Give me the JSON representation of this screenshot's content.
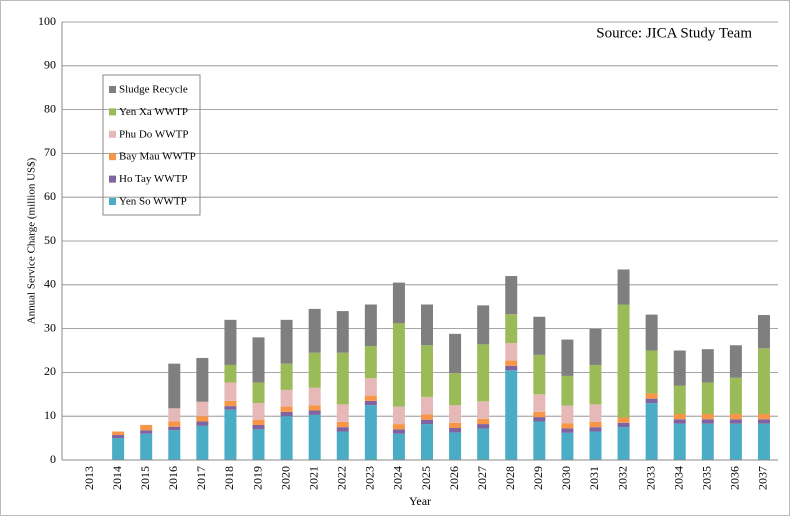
{
  "chart_data": {
    "type": "stacked-bar",
    "source": "Source: JICA Study Team",
    "x_label": "Year",
    "y_label": "Annual Service Charge (million US$)",
    "categories": [
      "2013",
      "2014",
      "2015",
      "2016",
      "2017",
      "2018",
      "2019",
      "2020",
      "2021",
      "2022",
      "2023",
      "2024",
      "2025",
      "2026",
      "2027",
      "2028",
      "2029",
      "2030",
      "2031",
      "2032",
      "2033",
      "2034",
      "2035",
      "2036",
      "2037"
    ],
    "series": [
      {
        "name": "Yen So WWTP",
        "color": "#4bacc6",
        "values": [
          0,
          5,
          6,
          6.8,
          7.8,
          11.5,
          7,
          10,
          10.3,
          6.5,
          12.5,
          6,
          8.2,
          6.3,
          7.2,
          20.5,
          8.8,
          6.2,
          6.5,
          7.5,
          13,
          8.3,
          8.3,
          8.3,
          8.3
        ]
      },
      {
        "name": "Ho Tay WWTP",
        "color": "#8064a2",
        "values": [
          0,
          0.7,
          0.8,
          0.8,
          1,
          0.8,
          1,
          1,
          1,
          1,
          1,
          1,
          1,
          1,
          1,
          1,
          1,
          1,
          1,
          1,
          1,
          1,
          1,
          1,
          1
        ]
      },
      {
        "name": "Bay Mau WWTP",
        "color": "#f79646",
        "values": [
          0,
          0.8,
          1.2,
          1.2,
          1.2,
          1.2,
          1.2,
          1.2,
          1.2,
          1.2,
          1.2,
          1.2,
          1.2,
          1.2,
          1.2,
          1.2,
          1.2,
          1.2,
          1.2,
          1.2,
          1.2,
          1.2,
          1.2,
          1.2,
          1.2
        ]
      },
      {
        "name": "Phu Do WWTP",
        "color": "#e6b9b8",
        "values": [
          0,
          0,
          0,
          3,
          3.3,
          4.2,
          3.8,
          3.8,
          4,
          4,
          4,
          4,
          4,
          4,
          4,
          4,
          4,
          4,
          4,
          0,
          0,
          0,
          0,
          0,
          0
        ]
      },
      {
        "name": "Yen Xa WWTP",
        "color": "#9bbb59",
        "values": [
          0,
          0,
          0,
          0,
          0,
          4,
          4.7,
          6,
          8,
          11.8,
          7.3,
          19,
          11.8,
          7.3,
          13,
          6.6,
          9,
          6.8,
          9,
          25.8,
          9.8,
          6.5,
          7.2,
          8.3,
          15
        ]
      },
      {
        "name": "Sludge Recycle",
        "color": "#7f7f7f",
        "values": [
          0,
          0,
          0,
          10.2,
          10,
          10.3,
          10.3,
          10,
          10,
          9.5,
          9.5,
          9.3,
          9.3,
          9,
          8.9,
          8.7,
          8.7,
          8.3,
          8.3,
          8,
          8.2,
          8,
          7.6,
          7.4,
          7.6
        ]
      }
    ],
    "ylim": [
      0,
      100
    ],
    "yticks": [
      0,
      10,
      20,
      30,
      40,
      50,
      60,
      70,
      80,
      90,
      100
    ],
    "grid": true,
    "legend": "upper left"
  }
}
